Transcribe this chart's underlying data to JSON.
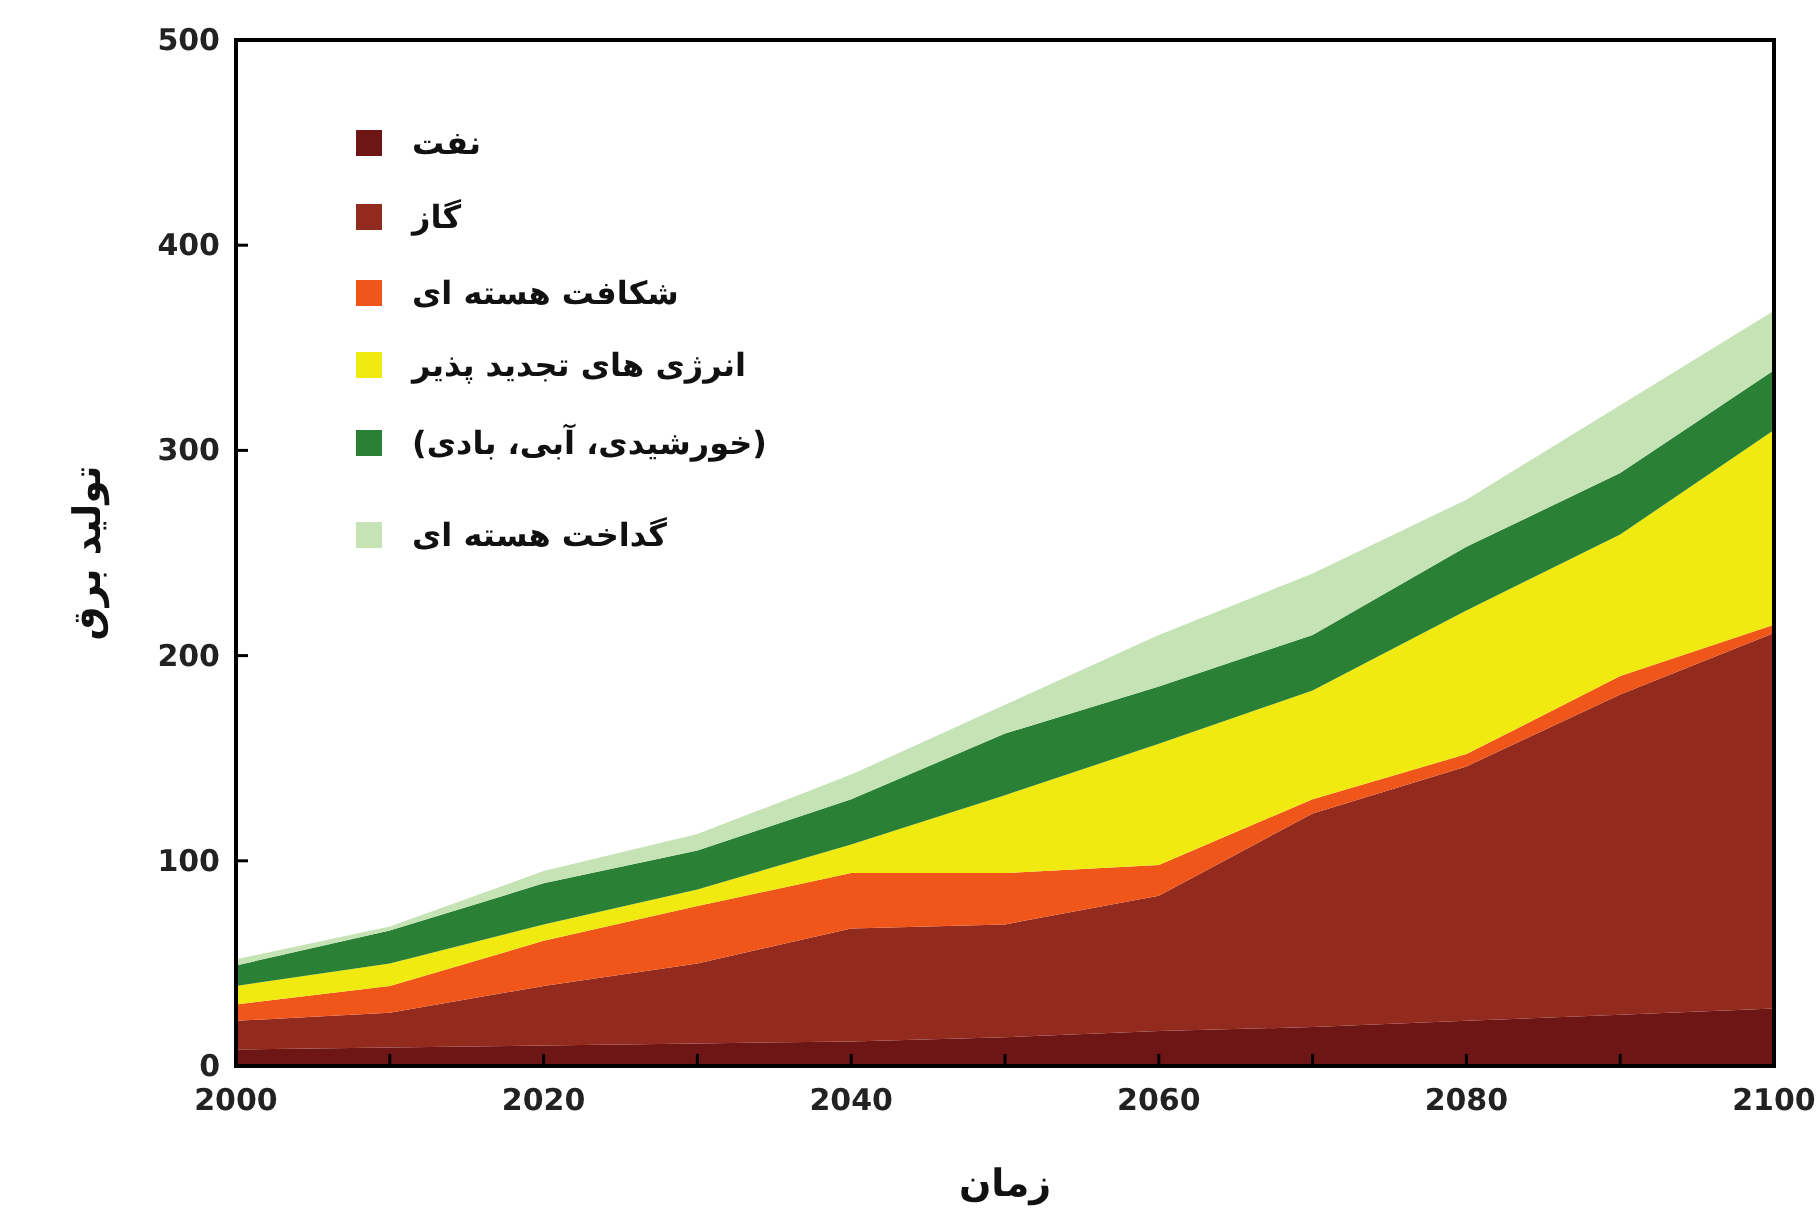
{
  "chart_data": {
    "type": "area",
    "stacked": true,
    "xlabel": "زمان",
    "ylabel": "تولید برق",
    "x": [
      2000,
      2010,
      2020,
      2030,
      2040,
      2050,
      2060,
      2070,
      2080,
      2090,
      2100
    ],
    "series": [
      {
        "name": "نفت",
        "color": "#6e1515",
        "values": [
          8,
          9,
          10,
          11,
          12,
          14,
          17,
          19,
          22,
          25,
          28
        ]
      },
      {
        "name": "گاز",
        "color": "#922a1e",
        "values": [
          14,
          17,
          29,
          39,
          55,
          55,
          66,
          104,
          124,
          156,
          183
        ]
      },
      {
        "name": "شکافت هسته ای",
        "color": "#f0561a",
        "values": [
          8,
          13,
          22,
          28,
          27,
          25,
          15,
          7,
          6,
          9,
          4
        ]
      },
      {
        "name": "انرژی های تجدید پذیر",
        "color": "#f0ea10",
        "values": [
          9,
          11,
          8,
          8,
          14,
          38,
          59,
          53,
          70,
          69,
          95
        ]
      },
      {
        "name": "(خورشیدی، آبی، بادی)",
        "color": "#2a8034",
        "values": [
          10,
          16,
          20,
          19,
          22,
          30,
          28,
          27,
          31,
          30,
          29
        ]
      },
      {
        "name": "گداخت هسته ای",
        "color": "#c5e3b5",
        "values": [
          3,
          2,
          6,
          8,
          12,
          14,
          25,
          30,
          23,
          33,
          29
        ]
      }
    ],
    "xlim": [
      2000,
      2100
    ],
    "ylim": [
      0,
      500
    ],
    "xticks": [
      2000,
      {
        "value": 2010,
        "label": null
      },
      2020,
      {
        "value": 2030,
        "label": null
      },
      2040,
      {
        "value": 2050,
        "label": null
      },
      2060,
      {
        "value": 2070,
        "label": null
      },
      2080,
      {
        "value": 2090,
        "label": null
      },
      2100
    ],
    "yticks": [
      0,
      100,
      200,
      300,
      400,
      500
    ],
    "legend": "top left"
  }
}
